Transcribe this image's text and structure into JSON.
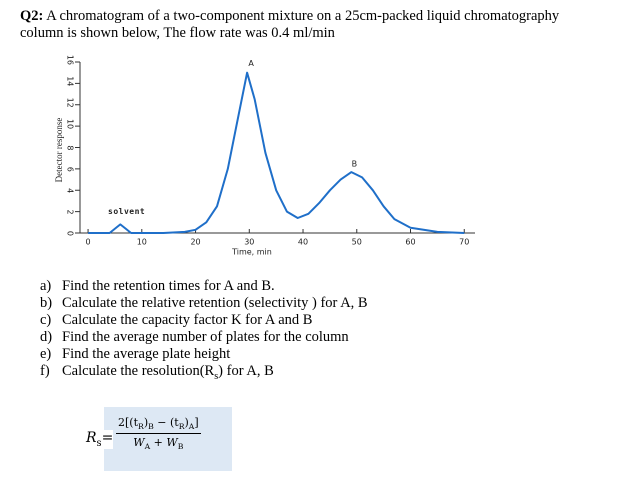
{
  "question": {
    "label": "Q2:",
    "text": "A chromatogram of a two-component mixture on a 25cm-packed liquid chromatography column is shown below, The flow rate was 0.4 ml/min"
  },
  "chart_data": {
    "type": "line",
    "x_label": "Time, min",
    "y_label": "Detector response",
    "x": [
      0,
      4,
      6,
      8,
      10,
      14,
      18,
      20,
      22,
      24,
      26,
      28,
      29.6,
      31,
      33,
      35,
      37,
      39,
      41,
      43,
      45,
      47,
      49,
      51,
      53,
      55,
      57,
      60,
      65,
      70
    ],
    "values": [
      0,
      0,
      0.8,
      0,
      0,
      0,
      0.1,
      0.3,
      1,
      2.5,
      6,
      11,
      15,
      12.5,
      7.5,
      4,
      2,
      1.4,
      1.8,
      2.8,
      4,
      5,
      5.7,
      5.2,
      4,
      2.5,
      1.3,
      0.5,
      0.1,
      0
    ],
    "color": "#1f6fc9",
    "xlim": [
      -1.5,
      72
    ],
    "ylim": [
      0,
      16
    ],
    "xticks": [
      0,
      10,
      20,
      30,
      40,
      50,
      60,
      70
    ],
    "yticks": [
      0,
      2,
      4,
      6,
      8,
      10,
      12,
      14,
      16
    ],
    "annotations": [
      "A",
      "B",
      "solvent"
    ]
  },
  "items": [
    {
      "marker": "a)",
      "text": [
        "Find the retention times for A and B."
      ]
    },
    {
      "marker": "b)",
      "text": [
        "Calculate the relative retention (selectivity ) for A, B"
      ]
    },
    {
      "marker": "c)",
      "text": [
        "Calculate the capacity factor K for A and B"
      ]
    },
    {
      "marker": "d)",
      "text": [
        "Find the average number of plates for the column"
      ]
    },
    {
      "marker": "e)",
      "text": [
        "Find the average plate height"
      ]
    },
    {
      "marker": "f)",
      "text": [
        "Calculate the resolution(R",
        "s",
        ") for A, B"
      ]
    }
  ],
  "formula": {
    "lhs": [
      "R",
      "s",
      "="
    ],
    "numerator": [
      "2[(t",
      "R",
      ")",
      "B",
      " − (t",
      "R",
      ")",
      "A",
      "]"
    ],
    "denominator": [
      "W",
      "A",
      " + W",
      "B"
    ]
  }
}
